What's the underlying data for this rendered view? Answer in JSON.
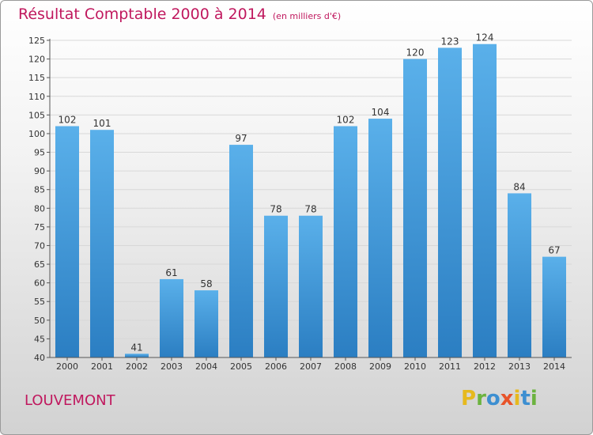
{
  "title": "Résultat Comptable 2000 à 2014",
  "title_unit": "(en milliers d'€)",
  "town": "LOUVEMONT",
  "logo": {
    "text": "Proxiti",
    "letter_colors": [
      "#e6b91e",
      "#6cb33f",
      "#3d8fd1",
      "#e8542a",
      "#e6b91e",
      "#3d8fd1",
      "#6cb33f"
    ]
  },
  "colors": {
    "accent": "#c0185e",
    "bar_top": "#5ab0ea",
    "bar_bottom": "#2b7ec2"
  },
  "chart_data": {
    "type": "bar",
    "categories": [
      "2000",
      "2001",
      "2002",
      "2003",
      "2004",
      "2005",
      "2006",
      "2007",
      "2008",
      "2009",
      "2010",
      "2011",
      "2012",
      "2013",
      "2014"
    ],
    "values": [
      102,
      101,
      41,
      61,
      58,
      97,
      78,
      78,
      102,
      104,
      120,
      123,
      124,
      84,
      67
    ],
    "ylim": [
      40,
      125
    ],
    "yticks": [
      40,
      45,
      50,
      55,
      60,
      65,
      70,
      75,
      80,
      85,
      90,
      95,
      100,
      105,
      110,
      115,
      120,
      125
    ],
    "grid": true
  }
}
